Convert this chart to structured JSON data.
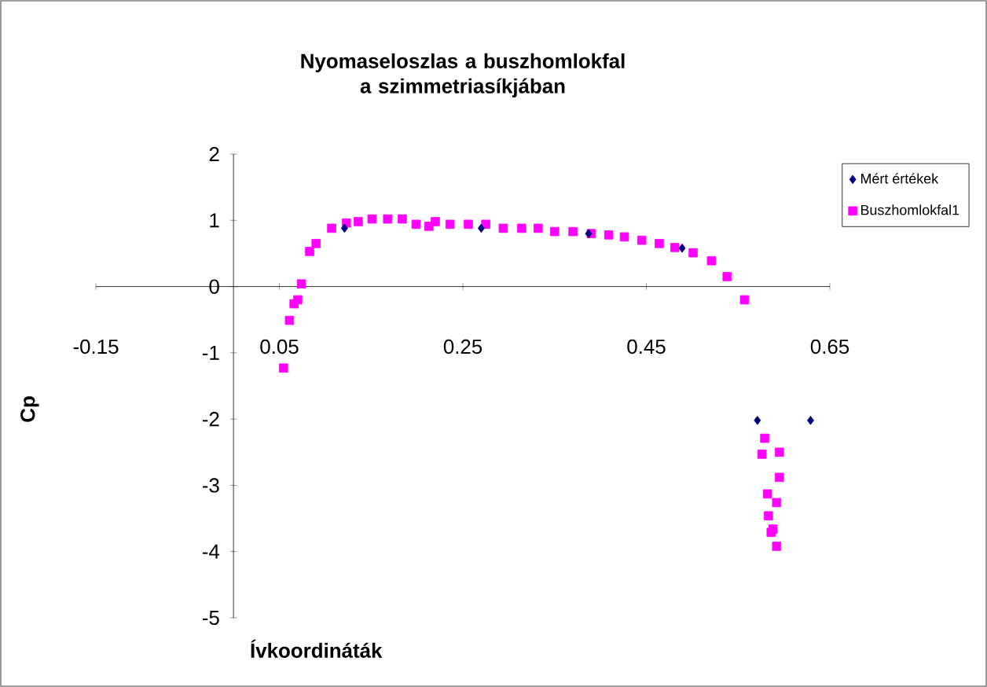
{
  "chart_data": {
    "type": "scatter",
    "title": "Nyomaseloszlas a buszhomlokfal a szimmetriasíkjában",
    "xlabel": "Ívkoordináták",
    "ylabel": "Cp",
    "xlim": [
      -0.15,
      0.65
    ],
    "xticks": [
      -0.15,
      0.05,
      0.25,
      0.45,
      0.65
    ],
    "ylim": [
      -5,
      2
    ],
    "yticks": [
      -5,
      -4,
      -3,
      -2,
      -1,
      0,
      1,
      2
    ],
    "grid": false,
    "legend": "top right",
    "series": [
      {
        "name": "Mért értékek",
        "color": "#000080",
        "marker": "diamond",
        "x": [
          0.121,
          0.27,
          0.387,
          0.489,
          0.571,
          0.629
        ],
        "values": [
          0.88,
          0.88,
          0.8,
          0.58,
          -2.02,
          -2.02
        ]
      },
      {
        "name": "Buszhomlokfal1",
        "color": "#ff00ff",
        "marker": "square",
        "x": [
          0.0545,
          0.061,
          0.066,
          0.07,
          0.074,
          0.083,
          0.09,
          0.107,
          0.123,
          0.136,
          0.151,
          0.168,
          0.184,
          0.199,
          0.213,
          0.22,
          0.236,
          0.256,
          0.275,
          0.294,
          0.314,
          0.332,
          0.35,
          0.37,
          0.39,
          0.409,
          0.426,
          0.445,
          0.464,
          0.481,
          0.501,
          0.521,
          0.538,
          0.557,
          0.579,
          0.576,
          0.595,
          0.595,
          0.582,
          0.592,
          0.583,
          0.588,
          0.586,
          0.592
        ],
        "values": [
          -1.23,
          -0.51,
          -0.26,
          -0.2,
          0.04,
          0.53,
          0.65,
          0.88,
          0.96,
          0.98,
          1.02,
          1.02,
          1.02,
          0.94,
          0.91,
          0.98,
          0.94,
          0.94,
          0.94,
          0.88,
          0.88,
          0.88,
          0.83,
          0.83,
          0.8,
          0.78,
          0.75,
          0.7,
          0.65,
          0.59,
          0.51,
          0.39,
          0.15,
          -0.2,
          -2.29,
          -2.53,
          -2.5,
          -2.88,
          -3.13,
          -3.26,
          -3.46,
          -3.66,
          -3.71,
          -3.92
        ]
      }
    ]
  }
}
